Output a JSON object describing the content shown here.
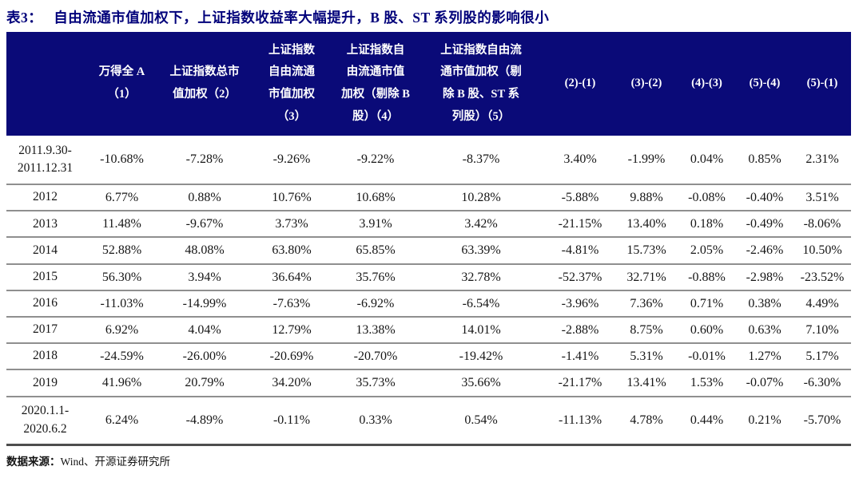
{
  "title": {
    "label": "表3：",
    "text": "自由流通市值加权下，上证指数收益率大幅提升，B 股、ST 系列股的影响很小"
  },
  "colors": {
    "header_bg": "#0a0a78",
    "title_text": "#00007a",
    "row_divider": "#8f8f8f"
  },
  "table": {
    "headers": [
      "",
      "万得全 A\n（1）",
      "上证指数总市\n值加权（2）",
      "上证指数\n自由流通\n市值加权\n（3）",
      "上证指数自\n由流通市值\n加权（剔除 B\n股）（4）",
      "上证指数自由流\n通市值加权（剔\n除 B 股、ST 系\n列股）（5）",
      "(2)-(1)",
      "(3)-(2)",
      "(4)-(3)",
      "(5)-(4)",
      "(5)-(1)"
    ],
    "rows": [
      {
        "period": "2011.9.30-\n2011.12.31",
        "tall": true,
        "values": [
          "-10.68%",
          "-7.28%",
          "-9.26%",
          "-9.22%",
          "-8.37%",
          "3.40%",
          "-1.99%",
          "0.04%",
          "0.85%",
          "2.31%"
        ]
      },
      {
        "period": "2012",
        "tall": false,
        "values": [
          "6.77%",
          "0.88%",
          "10.76%",
          "10.68%",
          "10.28%",
          "-5.88%",
          "9.88%",
          "-0.08%",
          "-0.40%",
          "3.51%"
        ]
      },
      {
        "period": "2013",
        "tall": false,
        "values": [
          "11.48%",
          "-9.67%",
          "3.73%",
          "3.91%",
          "3.42%",
          "-21.15%",
          "13.40%",
          "0.18%",
          "-0.49%",
          "-8.06%"
        ]
      },
      {
        "period": "2014",
        "tall": false,
        "values": [
          "52.88%",
          "48.08%",
          "63.80%",
          "65.85%",
          "63.39%",
          "-4.81%",
          "15.73%",
          "2.05%",
          "-2.46%",
          "10.50%"
        ]
      },
      {
        "period": "2015",
        "tall": false,
        "values": [
          "56.30%",
          "3.94%",
          "36.64%",
          "35.76%",
          "32.78%",
          "-52.37%",
          "32.71%",
          "-0.88%",
          "-2.98%",
          "-23.52%"
        ]
      },
      {
        "period": "2016",
        "tall": false,
        "values": [
          "-11.03%",
          "-14.99%",
          "-7.63%",
          "-6.92%",
          "-6.54%",
          "-3.96%",
          "7.36%",
          "0.71%",
          "0.38%",
          "4.49%"
        ]
      },
      {
        "period": "2017",
        "tall": false,
        "values": [
          "6.92%",
          "4.04%",
          "12.79%",
          "13.38%",
          "14.01%",
          "-2.88%",
          "8.75%",
          "0.60%",
          "0.63%",
          "7.10%"
        ]
      },
      {
        "period": "2018",
        "tall": false,
        "values": [
          "-24.59%",
          "-26.00%",
          "-20.69%",
          "-20.70%",
          "-19.42%",
          "-1.41%",
          "5.31%",
          "-0.01%",
          "1.27%",
          "5.17%"
        ]
      },
      {
        "period": "2019",
        "tall": false,
        "values": [
          "41.96%",
          "20.79%",
          "34.20%",
          "35.73%",
          "35.66%",
          "-21.17%",
          "13.41%",
          "1.53%",
          "-0.07%",
          "-6.30%"
        ]
      },
      {
        "period": "2020.1.1-\n2020.6.2",
        "tall": true,
        "values": [
          "6.24%",
          "-4.89%",
          "-0.11%",
          "0.33%",
          "0.54%",
          "-11.13%",
          "4.78%",
          "0.44%",
          "0.21%",
          "-5.70%"
        ]
      }
    ]
  },
  "footer": {
    "source_label": "数据来源：",
    "source_text": "Wind、开源证券研究所"
  }
}
